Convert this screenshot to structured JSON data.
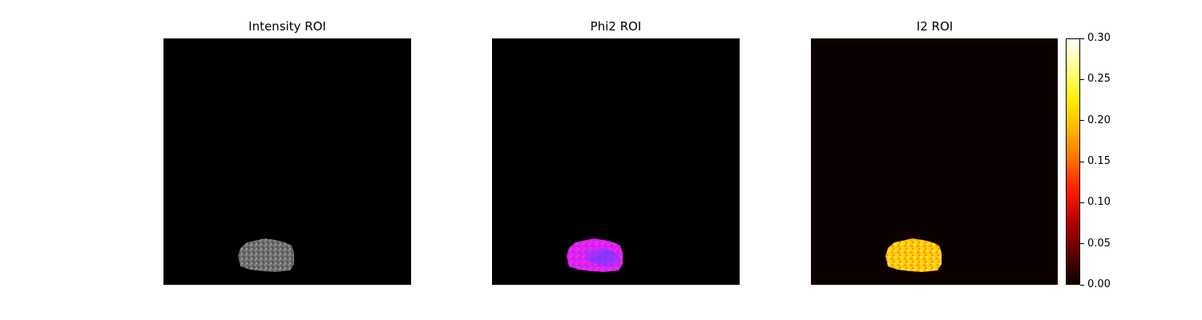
{
  "panels": [
    {
      "title": "Intensity ROI",
      "colormap": "gray",
      "background": "#000000"
    },
    {
      "title": "Phi2 ROI",
      "colormap": "magenta-blue",
      "background": "#000000"
    },
    {
      "title": "I2 ROI",
      "colormap": "hot",
      "background": "#0b0000"
    }
  ],
  "colorbar": {
    "colormap": "hot",
    "ticks": [
      "0.00",
      "0.05",
      "0.10",
      "0.15",
      "0.20",
      "0.25",
      "0.30"
    ],
    "range": [
      0.0,
      0.3
    ]
  }
}
